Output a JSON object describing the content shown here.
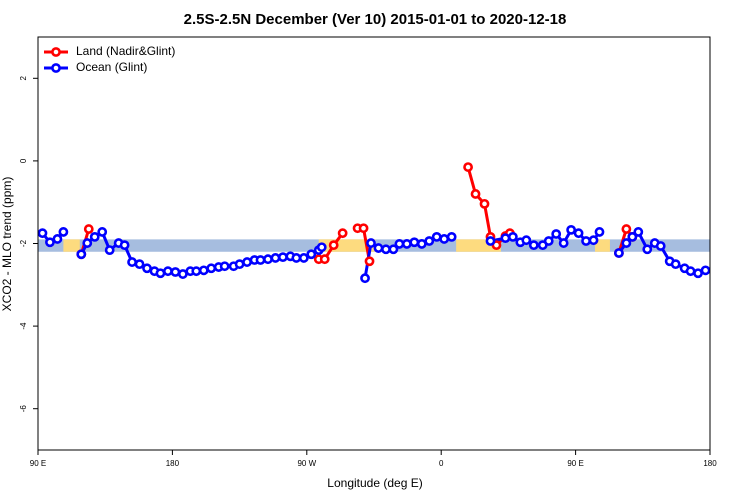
{
  "chart_data": {
    "type": "line",
    "title": "2.5S-2.5N December (Ver 10)   2015-01-01 to 2020-12-18",
    "x_label": "Longitude (deg E)",
    "y_label": "XCO2 - MLO trend (ppm)",
    "xlim": [
      90,
      540
    ],
    "xticks": [
      {
        "value": 90,
        "label": "90 E"
      },
      180,
      {
        "value": 270,
        "label": "90 W"
      },
      {
        "value": 360,
        "label": "0"
      },
      {
        "value": 450,
        "label": "90 E"
      },
      {
        "value": 540,
        "label": "180"
      }
    ],
    "ylim": [
      -7,
      3
    ],
    "yticks": [
      2,
      0,
      -2,
      -4,
      -6
    ],
    "legend": "top-left",
    "background_band": {
      "y": [
        -2.2,
        -1.9
      ],
      "ocean_color": "#a6bddf",
      "land_color": "#fddb7f",
      "land_ranges": [
        [
          107,
          118
        ],
        [
          278,
          316
        ],
        [
          370,
          400
        ],
        [
          463,
          473
        ]
      ]
    },
    "series": [
      {
        "name": "Land (Nadir&Glint)",
        "color": "#ff0000",
        "x": [
          119,
          124,
          null,
          278,
          282,
          288,
          294,
          null,
          304,
          308,
          312,
          null,
          378,
          383,
          389,
          393,
          397,
          403,
          406,
          null,
          479,
          484,
          488
        ],
        "values": [
          -2.26,
          -1.65,
          null,
          -2.38,
          -2.38,
          -2.04,
          -1.75,
          null,
          -1.63,
          -1.63,
          -2.43,
          null,
          -0.15,
          -0.8,
          -1.04,
          -1.84,
          -2.04,
          -1.82,
          -1.75,
          null,
          -2.23,
          -1.65,
          -1.84
        ]
      },
      {
        "name": "Ocean (Glint)",
        "color": "#0000ff",
        "x": [
          93,
          98,
          103,
          107,
          null,
          119,
          123,
          128,
          133,
          138,
          144,
          148,
          153,
          158,
          163,
          168,
          172,
          177,
          182,
          187,
          192,
          196,
          201,
          206,
          211,
          215,
          221,
          225,
          230,
          235,
          239,
          244,
          249,
          254,
          259,
          263,
          268,
          273,
          278,
          280,
          null,
          309,
          313,
          318,
          323,
          328,
          332,
          337,
          342,
          347,
          352,
          357,
          362,
          367,
          null,
          393,
          403,
          408,
          413,
          417,
          422,
          428,
          432,
          437,
          442,
          447,
          452,
          457,
          462,
          466,
          null,
          479,
          484,
          488,
          492,
          498,
          503,
          507,
          513,
          517,
          523,
          527,
          532,
          537
        ],
        "values": [
          -1.75,
          -1.97,
          -1.89,
          -1.72,
          null,
          -2.26,
          -1.99,
          -1.84,
          -1.72,
          -2.16,
          -1.99,
          -2.04,
          -2.45,
          -2.5,
          -2.6,
          -2.67,
          -2.72,
          -2.67,
          -2.69,
          -2.74,
          -2.67,
          -2.67,
          -2.65,
          -2.6,
          -2.57,
          -2.55,
          -2.55,
          -2.5,
          -2.45,
          -2.4,
          -2.4,
          -2.38,
          -2.35,
          -2.33,
          -2.31,
          -2.35,
          -2.35,
          -2.26,
          -2.16,
          -2.09,
          null,
          -2.84,
          -1.99,
          -2.11,
          -2.14,
          -2.14,
          -2.01,
          -2.01,
          -1.97,
          -2.01,
          -1.94,
          -1.84,
          -1.89,
          -1.84,
          null,
          -1.94,
          -1.87,
          -1.84,
          -1.97,
          -1.92,
          -2.04,
          -2.04,
          -1.94,
          -1.77,
          -1.99,
          -1.67,
          -1.75,
          -1.94,
          -1.92,
          -1.72,
          null,
          -2.23,
          -1.99,
          -1.84,
          -1.72,
          -2.14,
          -1.99,
          -2.06,
          -2.43,
          -2.5,
          -2.6,
          -2.67,
          -2.72,
          -2.65
        ]
      }
    ]
  }
}
